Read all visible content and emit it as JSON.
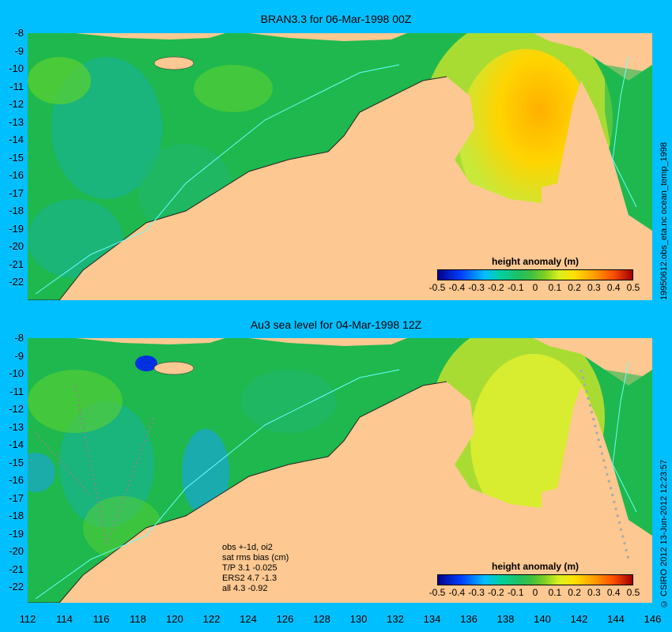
{
  "top_panel": {
    "title": "BRAN3.3 for 06-Mar-1998 00Z",
    "side_label": "19950612.obs_eta.nc       ocean_temp_1998"
  },
  "bottom_panel": {
    "title": "Au3 sea level  for 04-Mar-1998 12Z",
    "side_label": "© CSIRO 2012  13-Jun-2012 12:23:57",
    "stats": [
      "obs +-1d, oi2",
      "sat rms bias (cm)",
      "T/P  3.1 -0.025",
      "ERS2 4.7 -1.3",
      "all 4.3 -0.92"
    ]
  },
  "legend": {
    "title": "height anomaly (m)",
    "ticks": [
      "-0.5",
      "-0.4",
      "-0.3",
      "-0.2",
      "-0.1",
      "0",
      "0.1",
      "0.2",
      "0.3",
      "0.4",
      "0.5"
    ]
  },
  "y_ticks": [
    "-8",
    "-9",
    "-10",
    "-11",
    "-12",
    "-13",
    "-14",
    "-15",
    "-16",
    "-17",
    "-18",
    "-19",
    "-20",
    "-21",
    "-22"
  ],
  "x_ticks": [
    "112",
    "114",
    "116",
    "118",
    "120",
    "122",
    "124",
    "126",
    "128",
    "130",
    "132",
    "134",
    "136",
    "138",
    "140",
    "142",
    "144",
    "146"
  ],
  "colors": {
    "background": "#00bfff",
    "land": "#fdc891",
    "ocean_base": "#1eb84e"
  }
}
